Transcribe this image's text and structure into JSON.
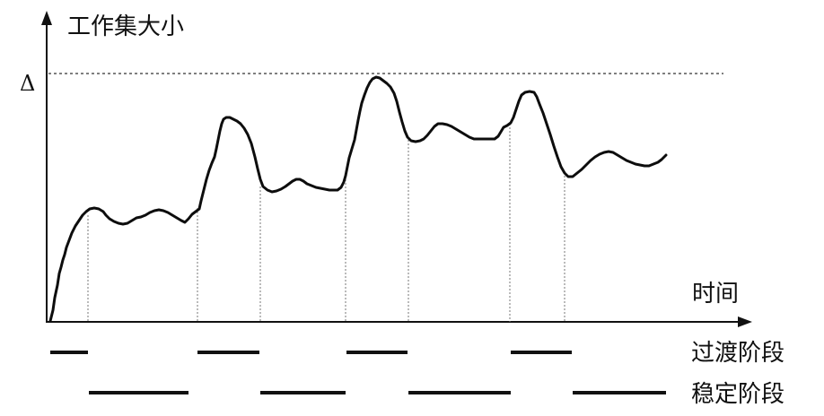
{
  "labels": {
    "y_axis": "工作集大小",
    "x_axis": "时间",
    "delta": "Δ",
    "transition_phase": "过渡阶段",
    "stable_phase": "稳定阶段"
  },
  "colors": {
    "curve": "#111111",
    "axis": "#111111",
    "dashed": "#555555",
    "bars": "#111111"
  }
}
